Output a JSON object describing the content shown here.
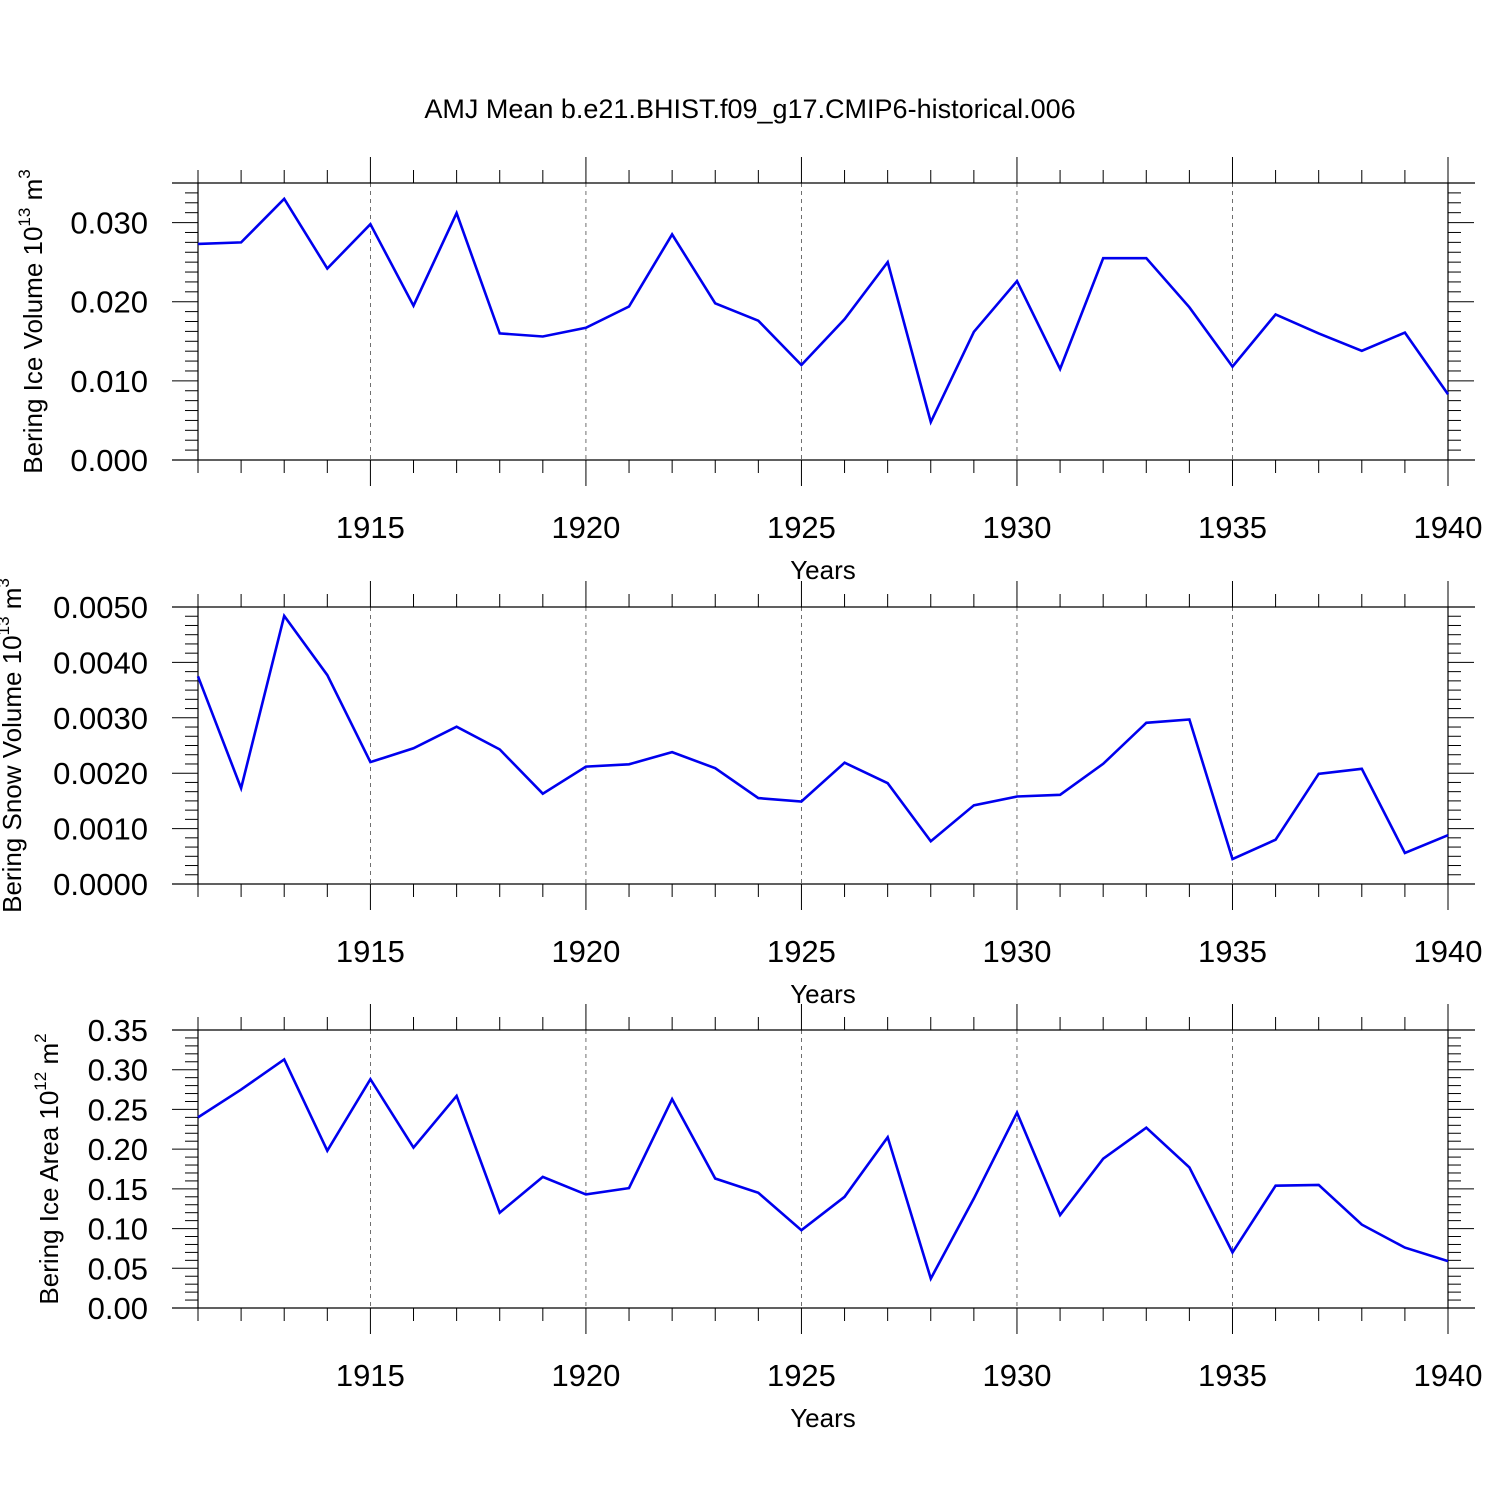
{
  "title": "AMJ Mean b.e21.BHIST.f09_g17.CMIP6-historical.006",
  "colors": {
    "line": "#0000ee",
    "axis": "#000000",
    "grid": "#000000"
  },
  "chart_data": [
    {
      "type": "line",
      "ylabel": "Bering Ice Volume 10",
      "ylabel_exp": "13",
      "ylabel_unit": " m",
      "ylabel_unit_exp": "3",
      "xlabel": "Years",
      "xlim": [
        1911,
        1940
      ],
      "ylim": [
        0.0,
        0.035
      ],
      "yticks": [
        0.0,
        0.01,
        0.02,
        0.03
      ],
      "ytick_labels": [
        "0.000",
        "0.010",
        "0.020",
        "0.030"
      ],
      "xticks": [
        1915,
        1920,
        1925,
        1930,
        1935,
        1940
      ],
      "xtick_labels": [
        "1915",
        "1920",
        "1925",
        "1930",
        "1935",
        "1940"
      ],
      "grid": "vertical dashed at major x ticks",
      "x": [
        1911,
        1912,
        1913,
        1914,
        1915,
        1916,
        1917,
        1918,
        1919,
        1920,
        1921,
        1922,
        1923,
        1924,
        1925,
        1926,
        1927,
        1928,
        1929,
        1930,
        1931,
        1932,
        1933,
        1934,
        1935,
        1936,
        1937,
        1938,
        1939,
        1940
      ],
      "series": [
        {
          "values": [
            0.0273,
            0.0275,
            0.033,
            0.0242,
            0.0298,
            0.0195,
            0.0312,
            0.016,
            0.0156,
            0.0167,
            0.0194,
            0.0285,
            0.0198,
            0.0176,
            0.012,
            0.0178,
            0.025,
            0.0048,
            0.0162,
            0.0226,
            0.0115,
            0.0255,
            0.0255,
            0.0193,
            0.0118,
            0.0184,
            0.016,
            0.0138,
            0.0161,
            0.0083
          ]
        }
      ]
    },
    {
      "type": "line",
      "ylabel": "Bering Snow Volume 10",
      "ylabel_exp": "13",
      "ylabel_unit": " m",
      "ylabel_unit_exp": "3",
      "xlabel": "Years",
      "xlim": [
        1911,
        1940
      ],
      "ylim": [
        0.0,
        0.005
      ],
      "yticks": [
        0.0,
        0.001,
        0.002,
        0.003,
        0.004,
        0.005
      ],
      "ytick_labels": [
        "0.0000",
        "0.0010",
        "0.0020",
        "0.0030",
        "0.0040",
        "0.0050"
      ],
      "xticks": [
        1915,
        1920,
        1925,
        1930,
        1935,
        1940
      ],
      "xtick_labels": [
        "1915",
        "1920",
        "1925",
        "1930",
        "1935",
        "1940"
      ],
      "grid": "vertical dashed at major x ticks",
      "x": [
        1911,
        1912,
        1913,
        1914,
        1915,
        1916,
        1917,
        1918,
        1919,
        1920,
        1921,
        1922,
        1923,
        1924,
        1925,
        1926,
        1927,
        1928,
        1929,
        1930,
        1931,
        1932,
        1933,
        1934,
        1935,
        1936,
        1937,
        1938,
        1939,
        1940
      ],
      "series": [
        {
          "values": [
            0.00375,
            0.00173,
            0.00484,
            0.00377,
            0.0022,
            0.00245,
            0.00284,
            0.00243,
            0.00163,
            0.00212,
            0.00216,
            0.00238,
            0.00209,
            0.00155,
            0.00149,
            0.00219,
            0.00182,
            0.00077,
            0.00142,
            0.00158,
            0.00161,
            0.00217,
            0.00291,
            0.00297,
            0.00045,
            0.0008,
            0.00199,
            0.00208,
            0.00056,
            0.00088
          ]
        }
      ]
    },
    {
      "type": "line",
      "ylabel": "Bering Ice Area 10",
      "ylabel_exp": "12",
      "ylabel_unit": " m",
      "ylabel_unit_exp": "2",
      "xlabel": "Years",
      "xlim": [
        1911,
        1940
      ],
      "ylim": [
        0.0,
        0.35
      ],
      "yticks": [
        0.0,
        0.05,
        0.1,
        0.15,
        0.2,
        0.25,
        0.3,
        0.35
      ],
      "ytick_labels": [
        "0.00",
        "0.05",
        "0.10",
        "0.15",
        "0.20",
        "0.25",
        "0.30",
        "0.35"
      ],
      "xticks": [
        1915,
        1920,
        1925,
        1930,
        1935,
        1940
      ],
      "xtick_labels": [
        "1915",
        "1920",
        "1925",
        "1930",
        "1935",
        "1940"
      ],
      "grid": "vertical dashed at major x ticks",
      "x": [
        1911,
        1912,
        1913,
        1914,
        1915,
        1916,
        1917,
        1918,
        1919,
        1920,
        1921,
        1922,
        1923,
        1924,
        1925,
        1926,
        1927,
        1928,
        1929,
        1930,
        1931,
        1932,
        1933,
        1934,
        1935,
        1936,
        1937,
        1938,
        1939,
        1940
      ],
      "series": [
        {
          "values": [
            0.24,
            0.275,
            0.313,
            0.198,
            0.288,
            0.202,
            0.267,
            0.12,
            0.165,
            0.143,
            0.151,
            0.263,
            0.163,
            0.145,
            0.098,
            0.14,
            0.215,
            0.037,
            0.138,
            0.246,
            0.117,
            0.188,
            0.227,
            0.177,
            0.07,
            0.154,
            0.155,
            0.105,
            0.076,
            0.059
          ]
        }
      ]
    }
  ]
}
